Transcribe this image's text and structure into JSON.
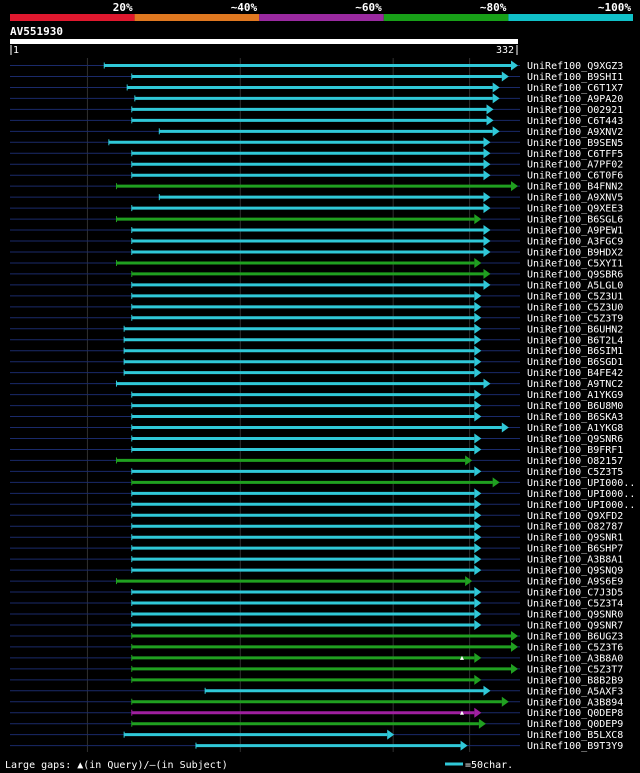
{
  "chart_data": {
    "type": "blast-alignment-overview",
    "query_id": "AV551930",
    "query_length_start": "1",
    "query_length_end": "332",
    "legend": [
      {
        "label": "20%",
        "color": "#e0182e"
      },
      {
        "label": "~40%",
        "color": "#e07820"
      },
      {
        "label": "~60%",
        "color": "#9a2aa0"
      },
      {
        "label": "~80%",
        "color": "#18a018"
      },
      {
        "label": "~100%",
        "color": "#10c0c8"
      }
    ],
    "colors": {
      "cyan": "#30c8d8",
      "green": "#20a020",
      "purple": "#a020a0",
      "baseline": "#1a2a6a",
      "grid": "#303030"
    },
    "footer_left": "Large gaps: ▲(in Query)/—(in Subject)",
    "footer_right": "=50char.",
    "hits": [
      {
        "name": "UniRef100_Q9XGZ3",
        "start": 62,
        "end": 332,
        "color": "cyan",
        "arrow": true
      },
      {
        "name": "UniRef100_B9SHI1",
        "start": 80,
        "end": 326,
        "color": "cyan",
        "arrow": true
      },
      {
        "name": "UniRef100_C6T1X7",
        "start": 77,
        "end": 320,
        "color": "cyan",
        "arrow": true
      },
      {
        "name": "UniRef100_A9PA20",
        "start": 82,
        "end": 320,
        "color": "cyan",
        "arrow": true
      },
      {
        "name": "UniRef100_O02921",
        "start": 80,
        "end": 316,
        "color": "cyan",
        "arrow": true
      },
      {
        "name": "UniRef100_C6T443",
        "start": 80,
        "end": 316,
        "color": "cyan",
        "arrow": true
      },
      {
        "name": "UniRef100_A9XNV2",
        "start": 98,
        "end": 320,
        "color": "cyan",
        "arrow": true
      },
      {
        "name": "UniRef100_B9SEN5",
        "start": 65,
        "end": 314,
        "color": "cyan",
        "arrow": true
      },
      {
        "name": "UniRef100_C6TFF5",
        "start": 80,
        "end": 314,
        "color": "cyan",
        "arrow": true
      },
      {
        "name": "UniRef100_A7PF02",
        "start": 80,
        "end": 314,
        "color": "cyan",
        "arrow": true
      },
      {
        "name": "UniRef100_C6T0F6",
        "start": 80,
        "end": 314,
        "color": "cyan",
        "arrow": true
      },
      {
        "name": "UniRef100_B4FNN2",
        "start": 70,
        "end": 332,
        "color": "green",
        "arrow": true
      },
      {
        "name": "UniRef100_A9XNV5",
        "start": 98,
        "end": 314,
        "color": "cyan",
        "arrow": true
      },
      {
        "name": "UniRef100_Q9XEE3",
        "start": 80,
        "end": 314,
        "color": "cyan",
        "arrow": true
      },
      {
        "name": "UniRef100_B6SGL6",
        "start": 70,
        "end": 308,
        "color": "green",
        "arrow": true
      },
      {
        "name": "UniRef100_A9PEW1",
        "start": 80,
        "end": 314,
        "color": "cyan",
        "arrow": true
      },
      {
        "name": "UniRef100_A3FGC9",
        "start": 80,
        "end": 314,
        "color": "cyan",
        "arrow": true
      },
      {
        "name": "UniRef100_B9HDX2",
        "start": 80,
        "end": 314,
        "color": "cyan",
        "arrow": true
      },
      {
        "name": "UniRef100_C5XYI1",
        "start": 70,
        "end": 308,
        "color": "green",
        "arrow": true
      },
      {
        "name": "UniRef100_Q9SBR6",
        "start": 80,
        "end": 314,
        "color": "green",
        "arrow": true
      },
      {
        "name": "UniRef100_A5LGL0",
        "start": 80,
        "end": 314,
        "color": "cyan",
        "arrow": true
      },
      {
        "name": "UniRef100_C5Z3U1",
        "start": 80,
        "end": 308,
        "color": "cyan",
        "arrow": true
      },
      {
        "name": "UniRef100_C5Z3U0",
        "start": 80,
        "end": 308,
        "color": "cyan",
        "arrow": true
      },
      {
        "name": "UniRef100_C5Z3T9",
        "start": 80,
        "end": 308,
        "color": "cyan",
        "arrow": true
      },
      {
        "name": "UniRef100_B6UHN2",
        "start": 75,
        "end": 308,
        "color": "cyan",
        "arrow": true
      },
      {
        "name": "UniRef100_B6T2L4",
        "start": 75,
        "end": 308,
        "color": "cyan",
        "arrow": true
      },
      {
        "name": "UniRef100_B6SIM1",
        "start": 75,
        "end": 308,
        "color": "cyan",
        "arrow": true
      },
      {
        "name": "UniRef100_B6SGD1",
        "start": 75,
        "end": 308,
        "color": "cyan",
        "arrow": true
      },
      {
        "name": "UniRef100_B4FE42",
        "start": 75,
        "end": 308,
        "color": "cyan",
        "arrow": true
      },
      {
        "name": "UniRef100_A9TNC2",
        "start": 70,
        "end": 314,
        "color": "cyan",
        "arrow": true
      },
      {
        "name": "UniRef100_A1YKG9",
        "start": 80,
        "end": 308,
        "color": "cyan",
        "arrow": true
      },
      {
        "name": "UniRef100_B6U8M0",
        "start": 80,
        "end": 308,
        "color": "cyan",
        "arrow": true
      },
      {
        "name": "UniRef100_B6SKA3",
        "start": 80,
        "end": 308,
        "color": "cyan",
        "arrow": true
      },
      {
        "name": "UniRef100_A1YKG8",
        "start": 80,
        "end": 326,
        "color": "cyan",
        "arrow": true
      },
      {
        "name": "UniRef100_Q9SNR6",
        "start": 80,
        "end": 308,
        "color": "cyan",
        "arrow": true
      },
      {
        "name": "UniRef100_B9FRF1",
        "start": 80,
        "end": 308,
        "color": "cyan",
        "arrow": true
      },
      {
        "name": "UniRef100_O82157",
        "start": 70,
        "end": 302,
        "color": "green",
        "arrow": true
      },
      {
        "name": "UniRef100_C5Z3T5",
        "start": 80,
        "end": 308,
        "color": "cyan",
        "arrow": true
      },
      {
        "name": "UniRef100_UPI000..",
        "start": 80,
        "end": 320,
        "color": "green",
        "arrow": true
      },
      {
        "name": "UniRef100_UPI000..",
        "start": 80,
        "end": 308,
        "color": "cyan",
        "arrow": true
      },
      {
        "name": "UniRef100_UPI000..",
        "start": 80,
        "end": 308,
        "color": "cyan",
        "arrow": true
      },
      {
        "name": "UniRef100_Q9XFD2",
        "start": 80,
        "end": 308,
        "color": "cyan",
        "arrow": true
      },
      {
        "name": "UniRef100_O82787",
        "start": 80,
        "end": 308,
        "color": "cyan",
        "arrow": true
      },
      {
        "name": "UniRef100_Q9SNR1",
        "start": 80,
        "end": 308,
        "color": "cyan",
        "arrow": true
      },
      {
        "name": "UniRef100_B6SHP7",
        "start": 80,
        "end": 308,
        "color": "cyan",
        "arrow": true
      },
      {
        "name": "UniRef100_A3B8A1",
        "start": 80,
        "end": 308,
        "color": "cyan",
        "arrow": true
      },
      {
        "name": "UniRef100_Q9SNQ9",
        "start": 80,
        "end": 308,
        "color": "cyan",
        "arrow": true
      },
      {
        "name": "UniRef100_A9S6E9",
        "start": 70,
        "end": 302,
        "color": "green",
        "arrow": true
      },
      {
        "name": "UniRef100_C7J3D5",
        "start": 80,
        "end": 308,
        "color": "cyan",
        "arrow": true
      },
      {
        "name": "UniRef100_C5Z3T4",
        "start": 80,
        "end": 308,
        "color": "cyan",
        "arrow": true
      },
      {
        "name": "UniRef100_Q9SNR0",
        "start": 80,
        "end": 308,
        "color": "cyan",
        "arrow": true
      },
      {
        "name": "UniRef100_Q9SNR7",
        "start": 80,
        "end": 308,
        "color": "cyan",
        "arrow": true
      },
      {
        "name": "UniRef100_B6UGZ3",
        "start": 80,
        "end": 332,
        "color": "green",
        "arrow": true
      },
      {
        "name": "UniRef100_C5Z3T6",
        "start": 80,
        "end": 332,
        "color": "green",
        "arrow": true
      },
      {
        "name": "UniRef100_A3B8A0",
        "start": 80,
        "end": 308,
        "color": "green",
        "arrow": true,
        "gap_query": 296
      },
      {
        "name": "UniRef100_C5Z3T7",
        "start": 80,
        "end": 332,
        "color": "green",
        "arrow": true
      },
      {
        "name": "UniRef100_B8B2B9",
        "start": 80,
        "end": 308,
        "color": "green",
        "arrow": true
      },
      {
        "name": "UniRef100_A5AXF3",
        "start": 128,
        "end": 314,
        "color": "cyan",
        "arrow": true
      },
      {
        "name": "UniRef100_A3B894",
        "start": 80,
        "end": 326,
        "color": "green",
        "arrow": true
      },
      {
        "name": "UniRef100_Q0DEP8",
        "start": 80,
        "end": 308,
        "color": "purple",
        "arrow": true,
        "gap_query": 296
      },
      {
        "name": "UniRef100_Q0DEP9",
        "start": 80,
        "end": 311,
        "color": "green",
        "arrow": true
      },
      {
        "name": "UniRef100_B5LXC8",
        "start": 75,
        "end": 251,
        "color": "cyan",
        "arrow": true
      },
      {
        "name": "UniRef100_B9T3Y9",
        "start": 122,
        "end": 299,
        "color": "cyan",
        "arrow": true
      }
    ]
  }
}
